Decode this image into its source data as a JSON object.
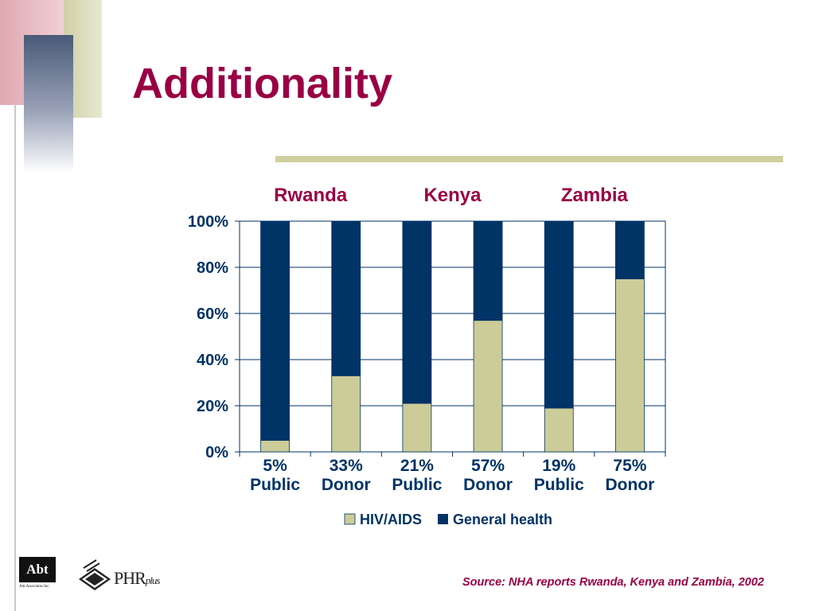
{
  "slide": {
    "title": "Additionality",
    "source": "Source: NHA reports Rwanda, Kenya and Zambia, 2002",
    "logos": {
      "abt": {
        "text": "Abt",
        "subtext": "Abt Associates Inc."
      },
      "phr": {
        "text": "PHR",
        "suffix": "plus"
      }
    }
  },
  "colors": {
    "title": "#990044",
    "axis_text": "#003366",
    "hiv": "#CCCC99",
    "general": "#003366",
    "gridline": "#003366",
    "deco_pink": "#E0A8B0",
    "deco_khaki": "#CFD0A6",
    "deco_gray": "#4A5A78"
  },
  "chart_data": {
    "type": "bar",
    "stacked": true,
    "percent_stacked": true,
    "groups": [
      "Rwanda",
      "Kenya",
      "Zambia"
    ],
    "categories": [
      {
        "value": "5%",
        "label": "Public"
      },
      {
        "value": "33%",
        "label": "Donor"
      },
      {
        "value": "21%",
        "label": "Public"
      },
      {
        "value": "57%",
        "label": "Donor"
      },
      {
        "value": "19%",
        "label": "Public"
      },
      {
        "value": "75%",
        "label": "Donor"
      }
    ],
    "series": [
      {
        "name": "HIV/AIDS",
        "values": [
          5,
          33,
          21,
          57,
          19,
          75
        ]
      },
      {
        "name": "General health",
        "values": [
          95,
          67,
          79,
          43,
          81,
          25
        ]
      }
    ],
    "yticks": [
      "0%",
      "20%",
      "40%",
      "60%",
      "80%",
      "100%"
    ],
    "ylim": [
      0,
      100
    ],
    "grid": true,
    "legend_position": "bottom"
  }
}
